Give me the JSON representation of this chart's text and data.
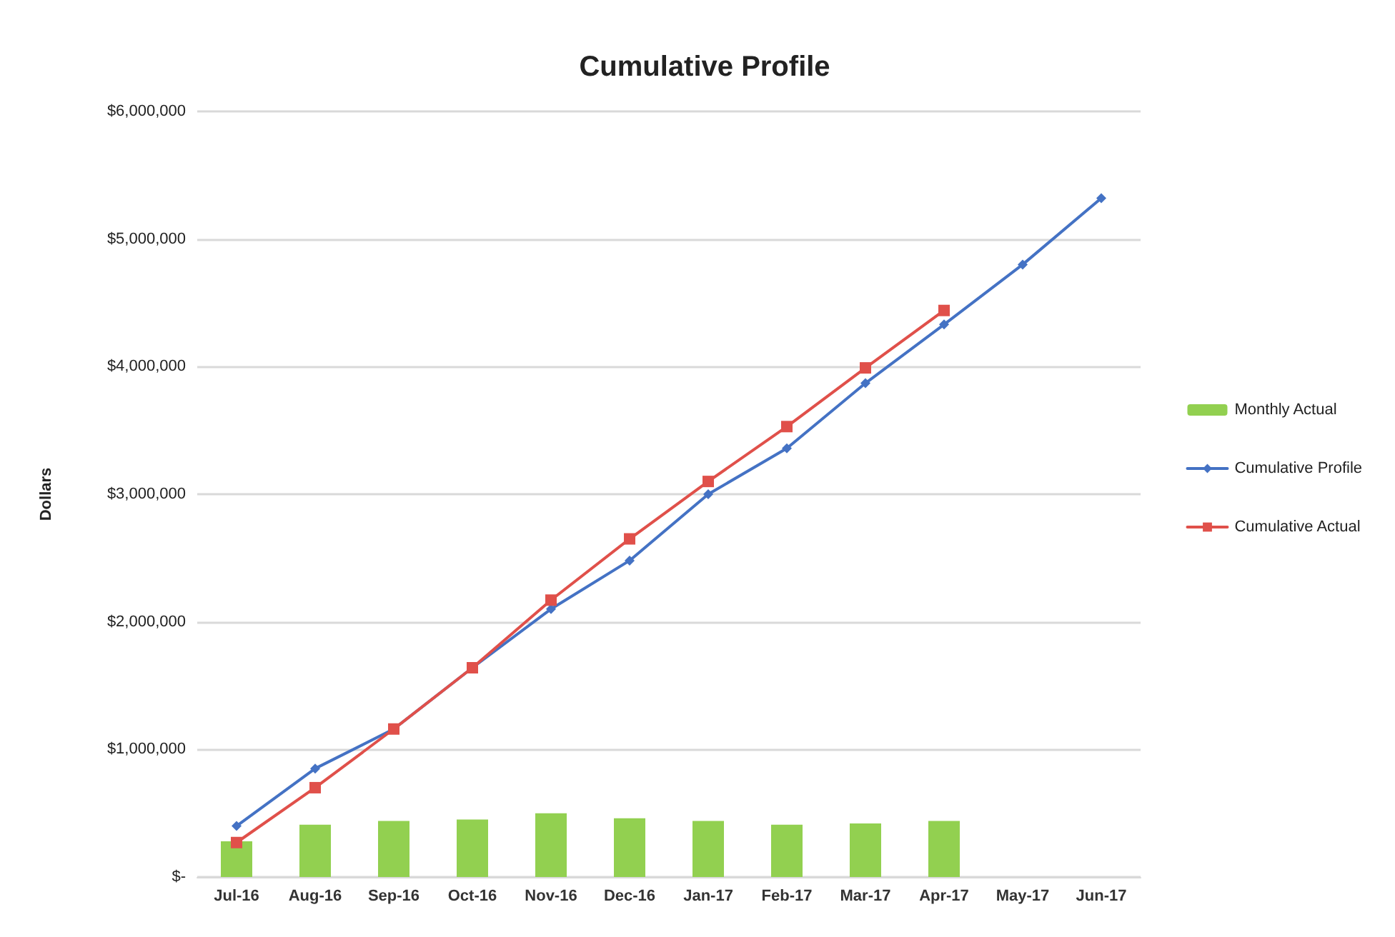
{
  "chart_data": {
    "type": "bar",
    "title": "Cumulative Profile",
    "ylabel": "Dollars",
    "categories": [
      "Jul-16",
      "Aug-16",
      "Sep-16",
      "Oct-16",
      "Nov-16",
      "Dec-16",
      "Jan-17",
      "Feb-17",
      "Mar-17",
      "Apr-17",
      "May-17",
      "Jun-17"
    ],
    "series": [
      {
        "name": "Monthly Actual",
        "color": "#92d050",
        "values": [
          280000,
          410000,
          440000,
          450000,
          500000,
          460000,
          440000,
          410000,
          420000,
          440000,
          null,
          null
        ]
      },
      {
        "name": "Cumulative Profile",
        "type": "line",
        "marker": "diamond",
        "color": "#4472c4",
        "values": [
          400000,
          850000,
          1160000,
          1640000,
          2100000,
          2480000,
          3000000,
          3360000,
          3870000,
          4330000,
          4800000,
          5320000
        ]
      },
      {
        "name": "Cumulative Actual",
        "type": "line",
        "marker": "square",
        "color": "#e0504a",
        "values": [
          270000,
          700000,
          1160000,
          1640000,
          2170000,
          2650000,
          3100000,
          3530000,
          3990000,
          4440000,
          null,
          null
        ]
      }
    ],
    "ylim": [
      0,
      6000000
    ],
    "yticks": [
      {
        "value": 0,
        "label": "$-"
      },
      {
        "value": 1000000,
        "label": "$1,000,000"
      },
      {
        "value": 2000000,
        "label": "$2,000,000"
      },
      {
        "value": 3000000,
        "label": "$3,000,000"
      },
      {
        "value": 4000000,
        "label": "$4,000,000"
      },
      {
        "value": 5000000,
        "label": "$5,000,000"
      },
      {
        "value": 6000000,
        "label": "$6,000,000"
      }
    ],
    "grid": "y",
    "legend": "right"
  }
}
